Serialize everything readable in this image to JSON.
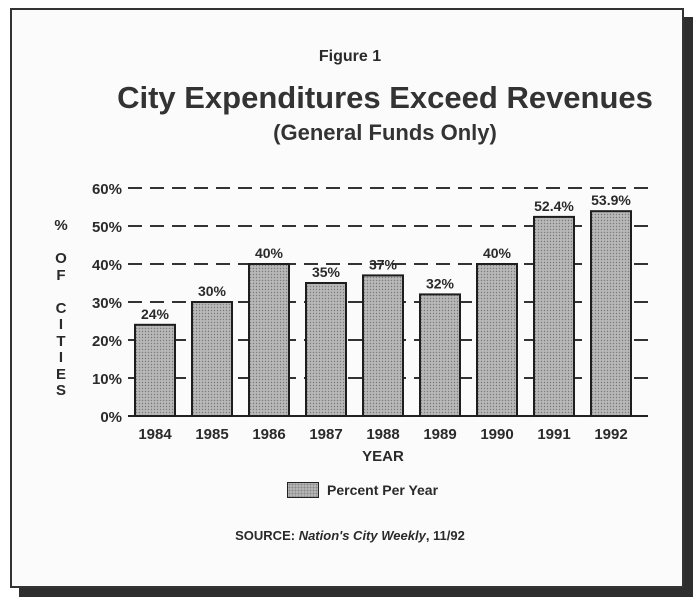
{
  "figure_label": "Figure 1",
  "chart_data": {
    "type": "bar",
    "title": "City Expenditures Exceed Revenues",
    "subtitle": "(General Funds Only)",
    "categories": [
      "1984",
      "1985",
      "1986",
      "1987",
      "1988",
      "1989",
      "1990",
      "1991",
      "1992"
    ],
    "values": [
      24,
      30,
      40,
      35,
      37,
      32,
      40,
      52.4,
      53.9
    ],
    "data_labels": [
      "24%",
      "30%",
      "40%",
      "35%",
      "37%",
      "32%",
      "40%",
      "52.4%",
      "53.9%"
    ],
    "xlabel": "YEAR",
    "ylabel": "% OF CITIES",
    "ylim": [
      0,
      60
    ],
    "yticks": [
      0,
      10,
      20,
      30,
      40,
      50,
      60
    ],
    "ytick_labels": [
      "0%",
      "10%",
      "20%",
      "30%",
      "40%",
      "50%",
      "60%"
    ],
    "grid": "dashed horizontal",
    "legend": [
      "Percent Per Year"
    ],
    "legend_position": "bottom-center",
    "bar_color": "#b5b5b5"
  },
  "source": {
    "prefix": "SOURCE: ",
    "publication": "Nation's City Weekly",
    "suffix": ", 11/92"
  }
}
